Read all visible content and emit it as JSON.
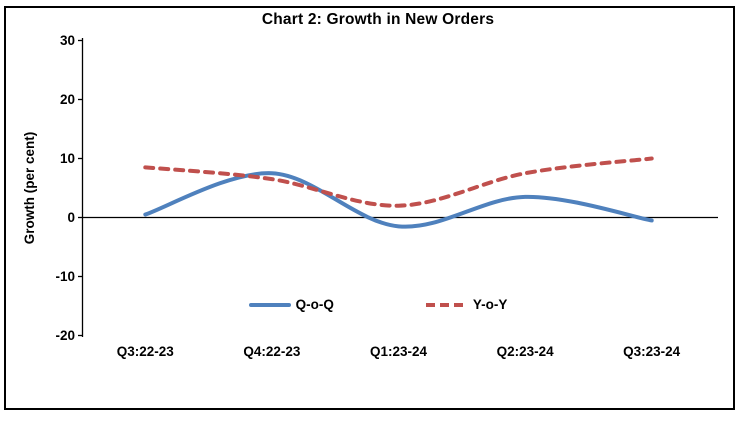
{
  "chart_data": {
    "type": "line",
    "title": "Chart 2: Growth in New Orders",
    "ylabel": "Growth (per cent)",
    "xlabel": "",
    "categories": [
      "Q3:22-23",
      "Q4:22-23",
      "Q1:23-24",
      "Q2:23-24",
      "Q3:23-24"
    ],
    "series": [
      {
        "name": "Q-o-Q",
        "color": "#4f81bd",
        "line_style": "solid",
        "values": [
          0.5,
          7.5,
          -1.5,
          3.5,
          -0.5
        ]
      },
      {
        "name": "Y-o-Y",
        "color": "#c0504d",
        "line_style": "dashed",
        "values": [
          8.5,
          6.5,
          2,
          7.5,
          10
        ]
      }
    ],
    "ylim": [
      -20,
      30
    ],
    "yticks": [
      30,
      20,
      10,
      0,
      -10,
      -20
    ],
    "grid": false,
    "smooth": true,
    "legend_position": "bottom-center",
    "axis_color": "#000000",
    "text_color": "#000000"
  }
}
